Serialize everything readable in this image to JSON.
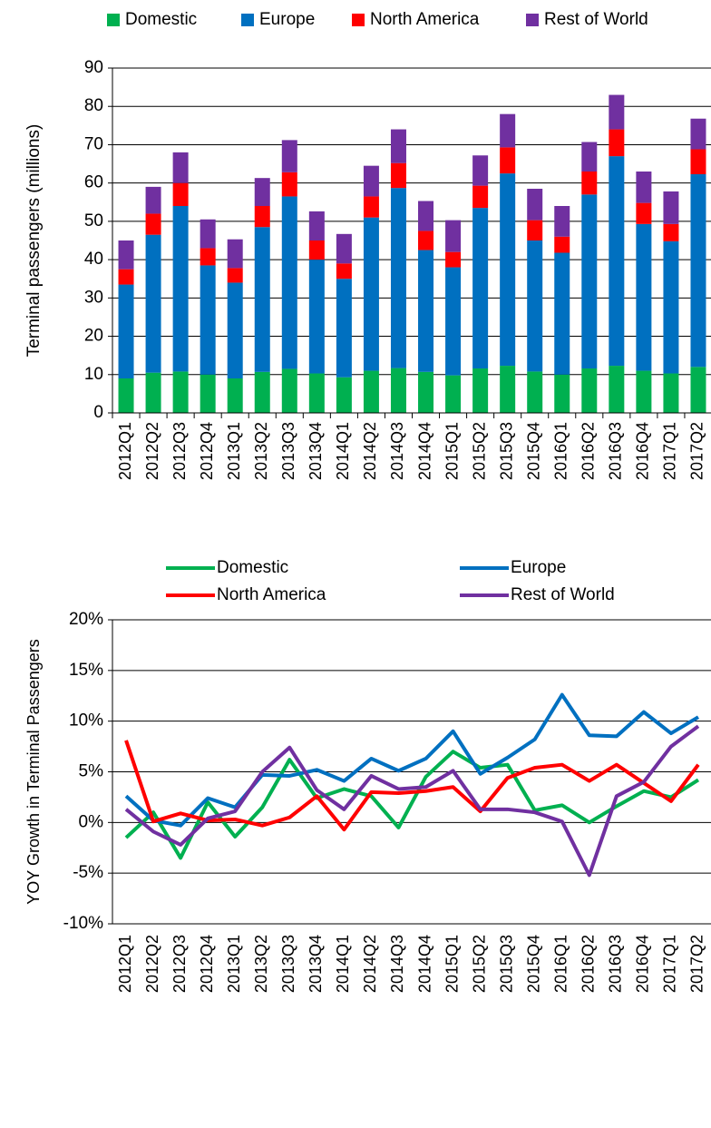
{
  "chart_data": [
    {
      "type": "bar",
      "stacked": true,
      "ylabel": "Terminal passengers (millions)",
      "categories": [
        "2012Q1",
        "2012Q2",
        "2012Q3",
        "2012Q4",
        "2013Q1",
        "2013Q2",
        "2013Q3",
        "2013Q4",
        "2014Q1",
        "2014Q2",
        "2014Q3",
        "2014Q4",
        "2015Q1",
        "2015Q2",
        "2015Q3",
        "2015Q4",
        "2016Q1",
        "2016Q2",
        "2016Q3",
        "2016Q4",
        "2017Q1",
        "2017Q2"
      ],
      "series": [
        {
          "name": "Domestic",
          "color": "#00b050",
          "values": [
            9,
            10.5,
            10.8,
            10,
            9,
            10.7,
            11.5,
            10.3,
            9.3,
            11,
            11.7,
            10.7,
            9.8,
            11.6,
            12.3,
            10.8,
            10,
            11.6,
            12.3,
            11,
            10.3,
            12
          ]
        },
        {
          "name": "Europe",
          "color": "#0070c0",
          "values": [
            24.5,
            36,
            43.2,
            28.5,
            25,
            37.8,
            45,
            29.7,
            25.7,
            40,
            47,
            31.8,
            28.2,
            41.9,
            50.2,
            34.2,
            31.8,
            45.4,
            54.7,
            38.3,
            34.5,
            50.3
          ]
        },
        {
          "name": "North America",
          "color": "#ff0000",
          "values": [
            4,
            5.5,
            6,
            4.5,
            3.8,
            5.5,
            6.3,
            5,
            4,
            5.5,
            6.5,
            5,
            4,
            5.8,
            6.8,
            5.3,
            4.2,
            6,
            7,
            5.5,
            4.5,
            6.5
          ]
        },
        {
          "name": "Rest of World",
          "color": "#7030a0",
          "values": [
            7.5,
            7,
            8,
            7.5,
            7.5,
            7.3,
            8.4,
            7.6,
            7.7,
            8,
            8.8,
            7.8,
            8.3,
            7.9,
            8.7,
            8.2,
            8,
            7.7,
            9,
            8.2,
            8.5,
            8
          ]
        }
      ],
      "ylim": [
        0,
        90
      ],
      "yticks": [
        0,
        10,
        20,
        30,
        40,
        50,
        60,
        70,
        80,
        90
      ],
      "grid": true,
      "legend": "top"
    },
    {
      "type": "line",
      "ylabel": "YOY Growth in Terminal Passengers",
      "categories": [
        "2012Q1",
        "2012Q2",
        "2012Q3",
        "2012Q4",
        "2013Q1",
        "2013Q2",
        "2013Q3",
        "2013Q4",
        "2014Q1",
        "2014Q2",
        "2014Q3",
        "2014Q4",
        "2015Q1",
        "2015Q2",
        "2015Q3",
        "2015Q4",
        "2016Q1",
        "2016Q2",
        "2016Q3",
        "2016Q4",
        "2017Q1",
        "2017Q2"
      ],
      "series": [
        {
          "name": "Domestic",
          "color": "#00b050",
          "values": [
            -1.5,
            1,
            -3.5,
            2,
            -1.4,
            1.5,
            6.2,
            2.4,
            3.3,
            2.6,
            -0.5,
            4.5,
            7,
            5.4,
            5.7,
            1.2,
            1.7,
            0,
            1.6,
            3.1,
            2.5,
            4.2
          ]
        },
        {
          "name": "Europe",
          "color": "#0070c0",
          "values": [
            2.6,
            0.2,
            -0.3,
            2.4,
            1.5,
            4.7,
            4.6,
            5.2,
            4.1,
            6.3,
            5.1,
            6.3,
            9,
            4.8,
            6.4,
            8.2,
            12.6,
            8.6,
            8.5,
            10.9,
            8.8,
            10.4
          ]
        },
        {
          "name": "North America",
          "color": "#ff0000",
          "values": [
            8.1,
            0.1,
            0.9,
            0.2,
            0.3,
            -0.3,
            0.5,
            2.6,
            -0.7,
            3,
            2.9,
            3.1,
            3.5,
            1.1,
            4.4,
            5.4,
            5.7,
            4.1,
            5.7,
            3.9,
            2.1,
            5.7
          ]
        },
        {
          "name": "Rest of World",
          "color": "#7030a0",
          "values": [
            1.3,
            -0.9,
            -2.2,
            0.4,
            1.1,
            5,
            7.4,
            3.2,
            1.3,
            4.6,
            3.3,
            3.5,
            5.1,
            1.3,
            1.3,
            1,
            0.1,
            -5.2,
            2.6,
            4,
            7.5,
            9.5
          ]
        }
      ],
      "ylim": [
        -10,
        20
      ],
      "yticks": [
        {
          "value": -10,
          "label": "-10%"
        },
        {
          "value": -5,
          "label": "-5%"
        },
        {
          "value": 0,
          "label": "0%"
        },
        {
          "value": 5,
          "label": "5%"
        },
        {
          "value": 10,
          "label": "10%"
        },
        {
          "value": 15,
          "label": "15%"
        },
        {
          "value": 20,
          "label": "20%"
        }
      ],
      "grid": true,
      "legend": "top"
    }
  ]
}
